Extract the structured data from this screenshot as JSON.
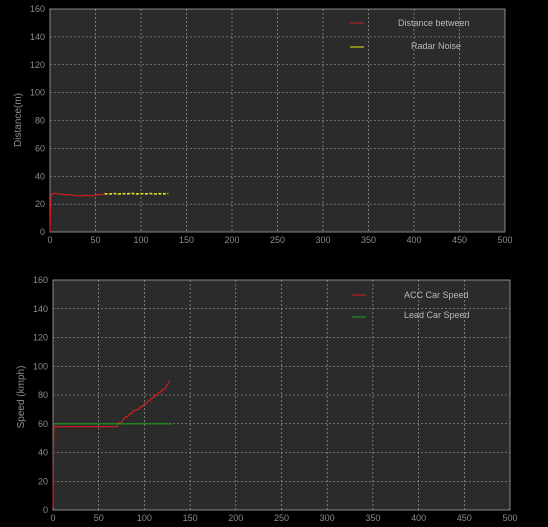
{
  "chart_data": [
    {
      "type": "line",
      "title": "",
      "xlabel": "",
      "ylabel": "Distance(m)",
      "xlim": [
        0,
        500
      ],
      "ylim": [
        0,
        160
      ],
      "xticks": [
        "0",
        "50",
        "100",
        "150",
        "200",
        "250",
        "300",
        "350",
        "400",
        "450",
        "500"
      ],
      "yticks": [
        "0",
        "20",
        "40",
        "60",
        "80",
        "100",
        "120",
        "140",
        "160"
      ],
      "grid": true,
      "legend_position": "top-right",
      "background": "#2b2b2b",
      "series": [
        {
          "name": "Distance between",
          "color": "#cc1f1f",
          "style": "solid",
          "x": [
            0,
            1,
            2,
            3,
            5,
            8,
            12,
            16,
            20,
            25,
            30,
            35,
            40,
            45,
            50,
            55,
            60
          ],
          "y": [
            0,
            26,
            27,
            27.5,
            27.8,
            27.4,
            27.2,
            26.6,
            26.9,
            26.4,
            26.0,
            25.9,
            26.3,
            25.8,
            26.6,
            26.8,
            27.1
          ]
        },
        {
          "name": "Radar Noise",
          "color": "#e6e619",
          "style": "dashed",
          "x": [
            60,
            65,
            70,
            75,
            80,
            85,
            90,
            95,
            100,
            105,
            110,
            115,
            120,
            125,
            130
          ],
          "y": [
            27.5,
            27.3,
            27.6,
            27.2,
            27.5,
            27.4,
            27.7,
            27.3,
            27.5,
            27.4,
            27.6,
            27.3,
            27.5,
            27.4,
            27.6
          ]
        }
      ]
    },
    {
      "type": "line",
      "title": "",
      "xlabel": "",
      "ylabel": "Speed (kmph)",
      "xlim": [
        0,
        500
      ],
      "ylim": [
        0,
        160
      ],
      "xticks": [
        "0",
        "50",
        "100",
        "150",
        "200",
        "250",
        "300",
        "350",
        "400",
        "450",
        "500"
      ],
      "yticks": [
        "0",
        "20",
        "40",
        "60",
        "80",
        "100",
        "120",
        "140",
        "160"
      ],
      "grid": true,
      "legend_position": "top-right",
      "background": "#2b2b2b",
      "series": [
        {
          "name": "ACC Car Speed",
          "color": "#cc1f1f",
          "style": "solid",
          "x": [
            0,
            0.5,
            1,
            2,
            5,
            20,
            40,
            60,
            66,
            70,
            72,
            74,
            76,
            78,
            80,
            82,
            84,
            86,
            88,
            90,
            92,
            94,
            96,
            98,
            100,
            102,
            104,
            106,
            108,
            110,
            112,
            114,
            116,
            118,
            120,
            122,
            124,
            126,
            128
          ],
          "y": [
            2,
            40,
            58,
            58,
            58,
            58,
            58,
            58,
            58,
            58,
            61,
            60,
            62,
            64,
            65,
            65,
            67,
            67,
            69,
            69,
            70,
            70,
            72,
            72,
            74,
            74,
            76,
            76,
            78,
            78,
            80,
            80,
            82,
            82,
            84,
            84,
            86,
            88,
            90
          ]
        },
        {
          "name": "Lead Car Speed",
          "color": "#1fa31f",
          "style": "solid",
          "x": [
            0,
            130
          ],
          "y": [
            60,
            60
          ]
        }
      ]
    }
  ]
}
